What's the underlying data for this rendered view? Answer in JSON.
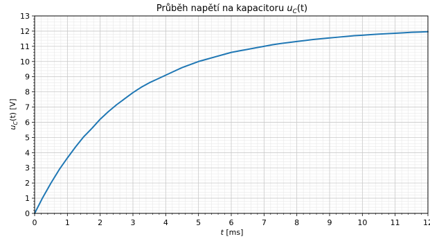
{
  "chart_data": {
    "type": "line",
    "title_prefix": "Průběh napětí na kapacitoru ",
    "title_var": "u",
    "title_sub": "C",
    "title_suffix": "(t)",
    "xlabel_var": "t",
    "xlabel_unit": " [ms]",
    "ylabel_var": "u",
    "ylabel_sub": "C",
    "ylabel_suffix": "(t) [V]",
    "xlim": [
      0,
      12
    ],
    "ylim": [
      0,
      13
    ],
    "xticks": [
      "0",
      "1",
      "2",
      "3",
      "4",
      "5",
      "6",
      "7",
      "8",
      "9",
      "10",
      "11",
      "12"
    ],
    "yticks": [
      "0",
      "1",
      "2",
      "3",
      "4",
      "5",
      "6",
      "7",
      "8",
      "9",
      "10",
      "11",
      "12",
      "13"
    ],
    "grid": true,
    "minor_grid": true,
    "line_color": "#1f77b4",
    "series": [
      {
        "x": [
          0,
          0.25,
          0.5,
          0.75,
          1,
          1.25,
          1.5,
          1.75,
          2,
          2.25,
          2.5,
          2.75,
          3,
          3.25,
          3.5,
          3.75,
          4,
          4.25,
          4.5,
          4.75,
          5,
          5.25,
          5.5,
          5.75,
          6,
          6.25,
          6.5,
          6.75,
          7,
          7.25,
          7.5,
          7.75,
          8,
          8.25,
          8.5,
          8.75,
          9,
          9.25,
          9.5,
          9.75,
          10,
          10.25,
          10.5,
          10.75,
          11,
          11.25,
          11.5,
          11.75,
          12
        ],
        "y": [
          0,
          1.05,
          2.0,
          2.88,
          3.65,
          4.38,
          5.05,
          5.6,
          6.2,
          6.7,
          7.15,
          7.55,
          7.95,
          8.3,
          8.6,
          8.85,
          9.1,
          9.35,
          9.6,
          9.8,
          10.0,
          10.15,
          10.3,
          10.45,
          10.6,
          10.7,
          10.8,
          10.9,
          11.0,
          11.1,
          11.18,
          11.25,
          11.32,
          11.38,
          11.45,
          11.5,
          11.55,
          11.6,
          11.65,
          11.7,
          11.73,
          11.77,
          11.8,
          11.83,
          11.86,
          11.89,
          11.92,
          11.94,
          11.96
        ]
      }
    ]
  }
}
